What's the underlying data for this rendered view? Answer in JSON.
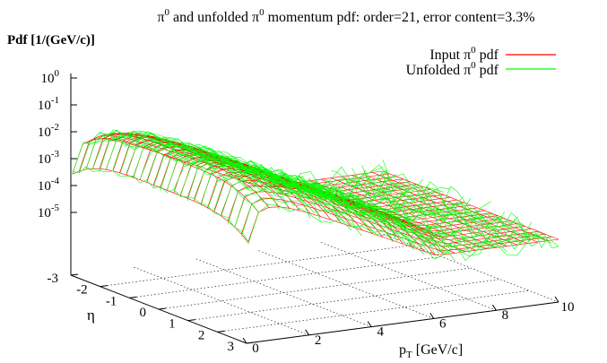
{
  "chart_data": {
    "type": "surface",
    "title_pre": "π",
    "title_sup": "0",
    "title_mid": " and unfolded π",
    "title_post": " momentum pdf: order=21, error content=3.3%",
    "zlabel": "Pdf [1/(GeV/c)]",
    "ylabel": "η",
    "xlabel_base": "p",
    "xlabel_sub": "T",
    "xlabel_post": " [GeV/c]",
    "x_ticks": [
      "0",
      "2",
      "4",
      "6",
      "8",
      "10"
    ],
    "y_ticks": [
      "-3",
      "-2",
      "-1",
      "0",
      "1",
      "2",
      "3"
    ],
    "z_ticks": [
      {
        "base": "10",
        "exp": "0"
      },
      {
        "base": "10",
        "exp": "-1"
      },
      {
        "base": "10",
        "exp": "-2"
      },
      {
        "base": "10",
        "exp": "-3"
      },
      {
        "base": "10",
        "exp": "-4"
      },
      {
        "base": "10",
        "exp": "-5"
      }
    ],
    "xlim": [
      0,
      10
    ],
    "ylim": [
      -3,
      3
    ],
    "zlim_log10": [
      -5,
      0
    ],
    "log_z": true,
    "grid": true,
    "legend_position": "top-right",
    "series": [
      {
        "label_pre": "Input π",
        "label_sup": "0",
        "label_post": " pdf",
        "color": "#ff0000"
      },
      {
        "label_pre": "Unfolded π",
        "label_sup": "0",
        "label_post": " pdf",
        "color": "#00ff00"
      }
    ]
  }
}
